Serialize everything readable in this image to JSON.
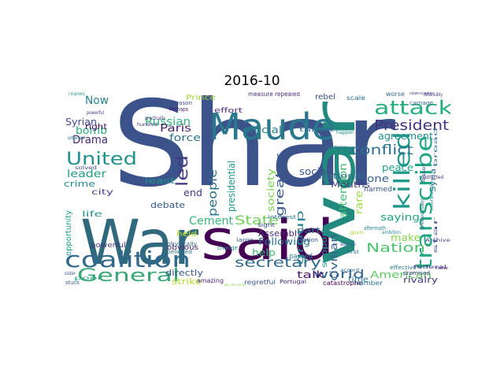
{
  "figure": {
    "title": "2016-10"
  },
  "wordcloud": {
    "colormap": "viridis",
    "background": "#ffffff",
    "words": [
      {
        "text": "Shar",
        "color": "#3b528b"
      },
      {
        "text": "War",
        "color": "#30697e"
      },
      {
        "text": "said",
        "color": "#440154"
      },
      {
        "text": "war",
        "color": "#22897f"
      },
      {
        "text": "Maude",
        "color": "#2a788e"
      },
      {
        "text": "coalition",
        "color": "#31688e"
      },
      {
        "text": "General",
        "color": "#3aa874"
      },
      {
        "text": "transcribe",
        "color": "#22a784"
      },
      {
        "text": "killed",
        "color": "#1f9a8a"
      },
      {
        "text": "attack",
        "color": "#29af7f"
      },
      {
        "text": "United",
        "color": "#20928c"
      },
      {
        "text": "President",
        "color": "#46337e"
      },
      {
        "text": "secretary",
        "color": "#31688e"
      },
      {
        "text": "people",
        "color": "#2c728e"
      },
      {
        "text": "Nation",
        "color": "#4ac16d"
      },
      {
        "text": "State",
        "color": "#70cf57"
      },
      {
        "text": "Cement",
        "color": "#35b779"
      },
      {
        "text": "conflict",
        "color": "#2d718e"
      },
      {
        "text": "world",
        "color": "#33638d"
      },
      {
        "text": "Drama",
        "color": "#482878"
      },
      {
        "text": "greater",
        "color": "#38588c"
      },
      {
        "text": "led",
        "color": "#443983"
      },
      {
        "text": "American",
        "color": "#5ec962"
      },
      {
        "text": "Syrian",
        "color": "#3e4989"
      },
      {
        "text": "Russian",
        "color": "#2fb47c"
      },
      {
        "text": "bomb",
        "color": "#27ad81"
      },
      {
        "text": "Now",
        "color": "#25848e"
      },
      {
        "text": "leader",
        "color": "#1e9c89"
      },
      {
        "text": "attention",
        "color": "#3ebc74"
      },
      {
        "text": "agreement",
        "color": "#218f8d"
      },
      {
        "text": "Following",
        "color": "#2a768e"
      },
      {
        "text": "help",
        "color": "#3aba76"
      },
      {
        "text": "Assembly",
        "color": "#472d7b"
      },
      {
        "text": "official",
        "color": "#287d8e"
      },
      {
        "text": "society",
        "color": "#7ad151"
      },
      {
        "text": "presidential",
        "color": "#1f968b"
      },
      {
        "text": "Paris",
        "color": "#481f70"
      },
      {
        "text": "force",
        "color": "#2c738e"
      },
      {
        "text": "peace",
        "color": "#1fa088"
      },
      {
        "text": "saying",
        "color": "#20a386"
      },
      {
        "text": "make",
        "color": "#84d44b"
      },
      {
        "text": "talk",
        "color": "#471365"
      },
      {
        "text": "civilian",
        "color": "#35608d"
      },
      {
        "text": "support",
        "color": "#1f9e89"
      },
      {
        "text": "national",
        "color": "#2e6e8e"
      },
      {
        "text": "social",
        "color": "#3b528b"
      },
      {
        "text": "group",
        "color": "#26828e"
      },
      {
        "text": "Mouths",
        "color": "#433e85"
      },
      {
        "text": "one",
        "color": "#34618d"
      },
      {
        "text": "rare",
        "color": "#9bd93c"
      },
      {
        "text": "part",
        "color": "#2d708e"
      },
      {
        "text": "crime",
        "color": "#24868e"
      },
      {
        "text": "debate",
        "color": "#37598c"
      },
      {
        "text": "least",
        "color": "#1f988b"
      },
      {
        "text": "city",
        "color": "#3f4788"
      },
      {
        "text": "life",
        "color": "#21918c"
      },
      {
        "text": "end",
        "color": "#453781"
      },
      {
        "text": "held",
        "color": "#c2df23"
      },
      {
        "text": "right",
        "color": "#46085c"
      },
      {
        "text": "Syria",
        "color": "#2b758e"
      },
      {
        "text": "rivalry",
        "color": "#443a83"
      },
      {
        "text": "time",
        "color": "#2a788e"
      },
      {
        "text": "strike",
        "color": "#b5de2b"
      },
      {
        "text": "directly",
        "color": "#38598c"
      },
      {
        "text": "Prince",
        "color": "#a0da39"
      },
      {
        "text": "rebel",
        "color": "#3b528b"
      },
      {
        "text": "powerful",
        "color": "#453882"
      },
      {
        "text": "obvious",
        "color": "#482475"
      },
      {
        "text": "effort",
        "color": "#4d2c7b"
      },
      {
        "text": "passed",
        "color": "#277f8e"
      },
      {
        "text": "harmed",
        "color": "#39558c"
      },
      {
        "text": "opportunity",
        "color": "#1f9f88"
      },
      {
        "text": "amazing",
        "color": "#481d6f"
      },
      {
        "text": "regretful",
        "color": "#39558c"
      },
      {
        "text": "catastrophe",
        "color": "#440154"
      },
      {
        "text": "number",
        "color": "#2a778e"
      },
      {
        "text": "measure repealed",
        "color": "#472d7b"
      },
      {
        "text": "scale",
        "color": "#2e6f8e"
      },
      {
        "text": "worse",
        "color": "#30698e"
      },
      {
        "text": "lawmaker",
        "color": "#3e4a89"
      },
      {
        "text": "carnage",
        "color": "#31678e"
      },
      {
        "text": "Portugal",
        "color": "#482677"
      },
      {
        "text": "large",
        "color": "#38588c"
      },
      {
        "text": "effective",
        "color": "#2a788e"
      },
      {
        "text": "promised",
        "color": "#433d84"
      },
      {
        "text": "stuck",
        "color": "#355f8d"
      },
      {
        "text": "sight",
        "color": "#3f4889"
      },
      {
        "text": "interest",
        "color": "#2b748e"
      },
      {
        "text": "physically",
        "color": "#34618d"
      },
      {
        "text": "believed",
        "color": "#2d708e"
      },
      {
        "text": "reason",
        "color": "#3d4d8a"
      },
      {
        "text": "Perhaps",
        "color": "#481769"
      },
      {
        "text": "change",
        "color": "#25858e"
      },
      {
        "text": "nation",
        "color": "#3c4f8a"
      },
      {
        "text": "hundred",
        "color": "#44397f"
      },
      {
        "text": "powerful",
        "color": "#472f7d"
      },
      {
        "text": "thrust",
        "color": "#31688e"
      },
      {
        "text": "Palestinians",
        "color": "#2d708e"
      },
      {
        "text": "federal",
        "color": "#443983"
      },
      {
        "text": "desperately",
        "color": "#37598c"
      },
      {
        "text": "first",
        "color": "#2b748e"
      },
      {
        "text": "new",
        "color": "#482878"
      },
      {
        "text": "star",
        "color": "#3e4a89"
      },
      {
        "text": "predecessor",
        "color": "#30698e"
      },
      {
        "text": "aftermath",
        "color": "#27808e"
      },
      {
        "text": "Bulletin",
        "color": "#8fd744"
      },
      {
        "text": "gun",
        "color": "#a8db34"
      },
      {
        "text": "broad",
        "color": "#2c728e"
      },
      {
        "text": "practically",
        "color": "#46337e"
      },
      {
        "text": "Thanks",
        "color": "#1f948c"
      },
      {
        "text": "sister",
        "color": "#3b528b"
      },
      {
        "text": "poor",
        "color": "#21a585"
      },
      {
        "text": "settlement",
        "color": "#2a788e"
      },
      {
        "text": "solved",
        "color": "#3e4989"
      },
      {
        "text": "distracted",
        "color": "#482677"
      },
      {
        "text": "ambition",
        "color": "#25858e"
      },
      {
        "text": "Archive",
        "color": "#3e4989"
      },
      {
        "text": "minister",
        "color": "#20938c"
      },
      {
        "text": "ostensibly",
        "color": "#46307e"
      },
      {
        "text": "accord",
        "color": "#31688e"
      },
      {
        "text": "lesser",
        "color": "#3a538b"
      },
      {
        "text": "happen",
        "color": "#228d8d"
      }
    ]
  }
}
